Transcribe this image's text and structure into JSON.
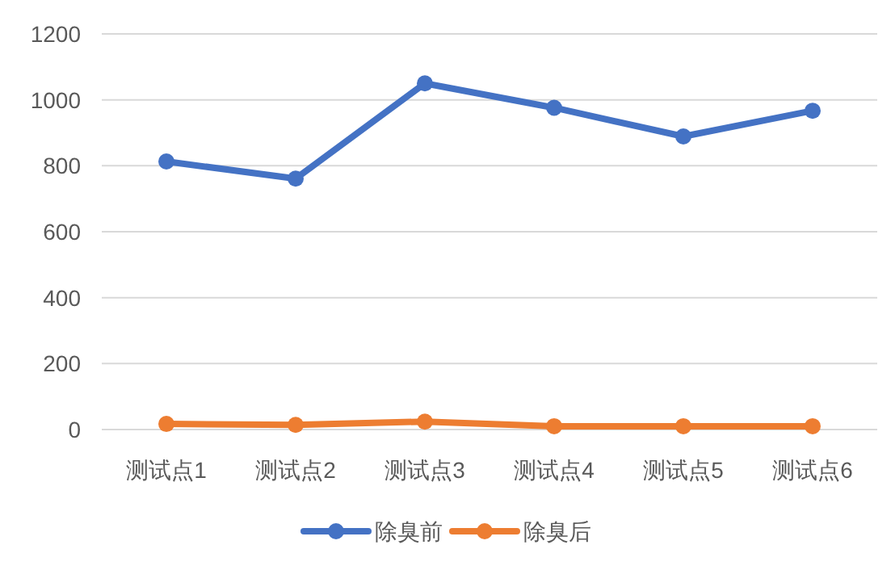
{
  "chart_data": {
    "type": "line",
    "categories": [
      "测试点1",
      "测试点2",
      "测试点3",
      "测试点4",
      "测试点5",
      "测试点6"
    ],
    "series": [
      {
        "name": "除臭前",
        "color": "#4472c4",
        "values": [
          813,
          761,
          1050,
          976,
          889,
          967
        ]
      },
      {
        "name": "除臭后",
        "color": "#ed7d31",
        "values": [
          17,
          14,
          24,
          10,
          10,
          10
        ]
      }
    ],
    "ylim": [
      0,
      1200
    ],
    "yticks": [
      0,
      200,
      400,
      600,
      800,
      1000,
      1200
    ],
    "grid": "y",
    "legend": "bottom",
    "marker": "circle",
    "line_style": "solid"
  }
}
